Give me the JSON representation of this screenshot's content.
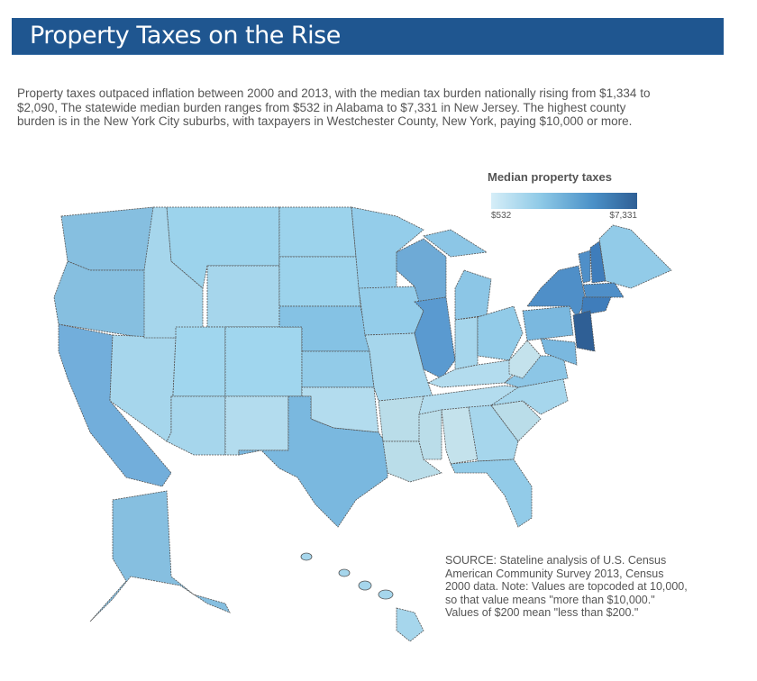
{
  "header": {
    "title": "Property Taxes on the Rise"
  },
  "intro": "Property taxes outpaced inflation between 2000 and 2013, with the median tax burden nationally rising from $1,334 to $2,090, The statewide median burden ranges from $532 in Alabama to $7,331 in New Jersey. The highest county burden is in the New York City suburbs, with taxpayers in Westchester County, New York, paying $10,000 or more.",
  "legend": {
    "title": "Median property taxes",
    "min_label": "$532",
    "max_label": "$7,331",
    "min_color": "#d6eef8",
    "max_color": "#2f5f95"
  },
  "map_data": {
    "type": "choropleth",
    "colors": {
      "WA": "#86bfe0",
      "OR": "#86bfe0",
      "CA": "#72aedb",
      "NV": "#a6d6ec",
      "ID": "#a6d6ec",
      "MT": "#9cd3ec",
      "WY": "#a6d6ec",
      "UT": "#a0d6ee",
      "CO": "#a0d6ee",
      "AZ": "#a6d6ec",
      "NM": "#b3dcee",
      "ND": "#9cd3ec",
      "SD": "#9cd3ec",
      "NE": "#85c2e4",
      "KS": "#92cbe8",
      "OK": "#b3dcee",
      "TX": "#7ab8df",
      "MN": "#94cdea",
      "IA": "#94cdea",
      "MO": "#a6d6ec",
      "AR": "#badde9",
      "LA": "#badde9",
      "WI": "#6eaad6",
      "IL": "#5a9ad0",
      "MI": "#8cc6e6",
      "IN": "#a6d6ec",
      "OH": "#92cbe8",
      "KY": "#b3dcee",
      "TN": "#b3dcee",
      "MS": "#badde9",
      "AL": "#c4e2ec",
      "GA": "#a6d6ec",
      "FL": "#92cbe8",
      "SC": "#badde9",
      "NC": "#a6d6ec",
      "VA": "#8cc6e6",
      "WV": "#c4e2ec",
      "PA": "#7ab8df",
      "NY": "#4f8fc8",
      "VT": "#4f8fc8",
      "NH": "#3f7dbb",
      "ME": "#92cbe8",
      "MA": "#4f8fc8",
      "CT": "#3f7dbb",
      "NJ": "#2f5f95",
      "MD": "#7ab8df",
      "AK": "#86bfe0",
      "HI": "#a6d6ec"
    }
  },
  "source": "SOURCE: Stateline analysis of  U.S. Census American Community Survey 2013, Census 2000 data. Note: Values are topcoded at 10,000, so that value means \"more than $10,000.\" Values of $200 mean \"less than $200.\""
}
